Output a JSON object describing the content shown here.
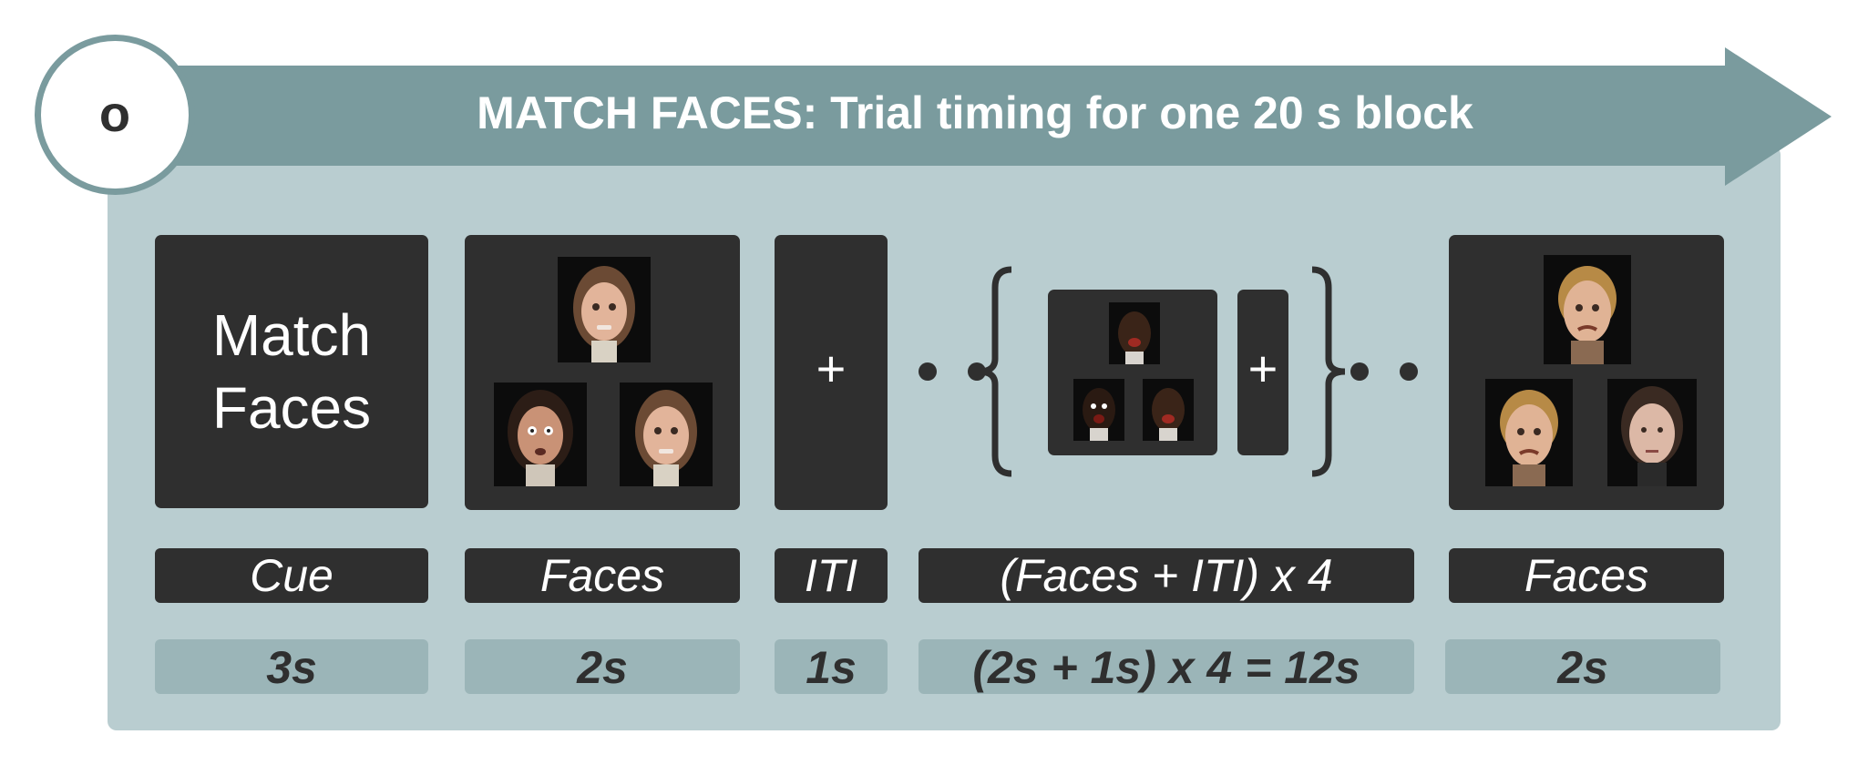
{
  "banner": {
    "badge": "o",
    "title": "MATCH FACES: Trial timing for one 20 s block"
  },
  "colors": {
    "banner": "#7a9b9e",
    "panel": "#b9cdd0",
    "screen": "#2f2f2f",
    "duration_bg": "#9bb5b8"
  },
  "cue": {
    "lines": [
      "Match",
      "Faces"
    ]
  },
  "iti": {
    "symbol": "+"
  },
  "repeat": {
    "symbol": "+"
  },
  "stages": [
    {
      "label": "Cue",
      "duration": "3s"
    },
    {
      "label": "Faces",
      "duration": "2s"
    },
    {
      "label": "ITI",
      "duration": "1s"
    },
    {
      "label": "(Faces + ITI) x 4",
      "duration": "(2s + 1s) x 4 = 12s"
    },
    {
      "label": "Faces",
      "duration": "2s"
    }
  ]
}
